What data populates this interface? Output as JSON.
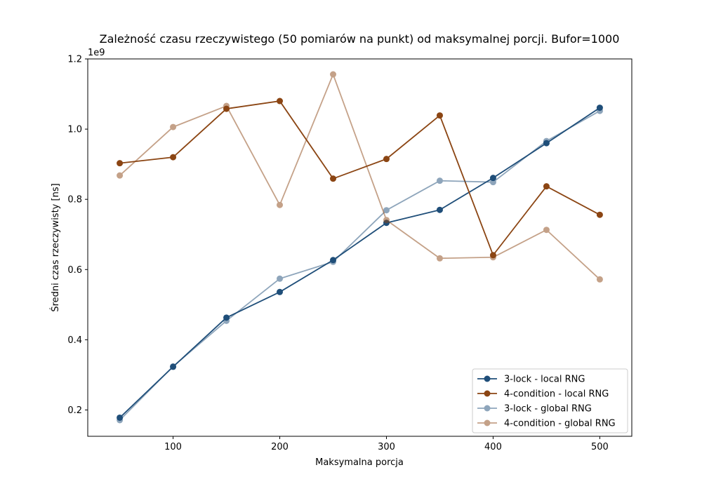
{
  "chart_data": {
    "type": "line",
    "title": "Zależność czasu rzeczywistego (50 pomiarów na punkt) od maksymalnej porcji. Bufor=1000",
    "xlabel": "Maksymalna porcja",
    "ylabel": "Średni czas rzeczywisty [ns]",
    "y_offset_text": "1e9",
    "x": [
      50,
      100,
      150,
      200,
      250,
      300,
      350,
      400,
      450,
      500
    ],
    "xlim": [
      20,
      530
    ],
    "ylim": [
      0.125,
      1.2
    ],
    "x_ticks": [
      100,
      200,
      300,
      400,
      500
    ],
    "x_tick_labels": [
      "100",
      "200",
      "300",
      "400",
      "500"
    ],
    "y_ticks": [
      0.2,
      0.4,
      0.6,
      0.8,
      1.0,
      1.2
    ],
    "y_tick_labels": [
      "0.2",
      "0.4",
      "0.6",
      "0.8",
      "1.0",
      "1.2"
    ],
    "grid": false,
    "legend_position": "bottom-right",
    "series": [
      {
        "name": "3-lock - local RNG",
        "color": "#1f4e79",
        "opacity": 1.0,
        "values": [
          0.178,
          0.323,
          0.463,
          0.536,
          0.627,
          0.733,
          0.77,
          0.861,
          0.96,
          1.061
        ]
      },
      {
        "name": "4-condition - local RNG",
        "color": "#8b4513",
        "opacity": 1.0,
        "values": [
          0.903,
          0.92,
          1.058,
          1.08,
          0.859,
          0.915,
          1.039,
          0.641,
          0.837,
          0.756
        ]
      },
      {
        "name": "3-lock - global RNG",
        "color": "#1f4e79",
        "opacity": 0.5,
        "values": [
          0.171,
          0.324,
          0.454,
          0.574,
          0.622,
          0.769,
          0.853,
          0.849,
          0.966,
          1.052
        ]
      },
      {
        "name": "4-condition - global RNG",
        "color": "#8b4513",
        "opacity": 0.5,
        "values": [
          0.868,
          1.006,
          1.066,
          0.784,
          1.156,
          0.741,
          0.632,
          0.635,
          0.713,
          0.572
        ]
      }
    ]
  }
}
